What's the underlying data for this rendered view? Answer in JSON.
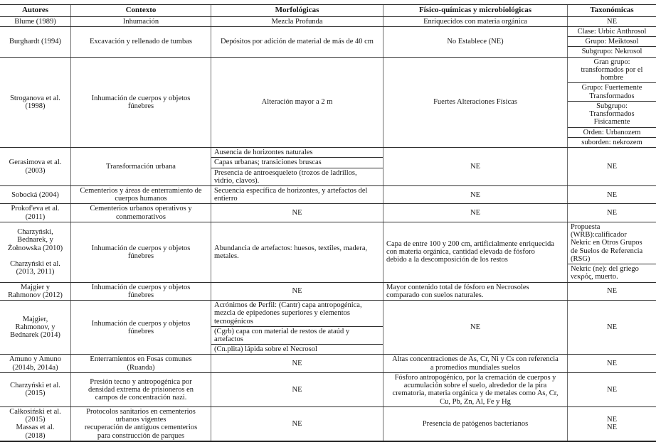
{
  "table": {
    "columns": [
      "Autores",
      "Contexto",
      "Morfológicas",
      "Físico-químicas y microbiológicas",
      "Taxonómicas"
    ],
    "rows": [
      {
        "autores": {
          "text": "Blume (1989)"
        },
        "contexto": {
          "text": "Inhumación"
        },
        "morfologicas": {
          "text": "Mezcla Profunda"
        },
        "fisicoquimicas": {
          "text": "Enriquecidos con materia orgánica"
        },
        "taxonomicas": {
          "text": "NE"
        }
      },
      {
        "autores": {
          "text": "Burghardt (1994)"
        },
        "contexto": {
          "text": "Excavación y rellenado de tumbas"
        },
        "morfologicas": {
          "text": "Depósitos por adición de material de más de 40 cm"
        },
        "fisicoquimicas": {
          "text": "No Establece (NE)"
        },
        "taxonomicas": {
          "subrows": [
            {
              "text": "Clase: Urbic Anthrosol"
            },
            {
              "text": "Grupo: Meiktosol"
            },
            {
              "text": "Subgrupo: Nekrosol"
            }
          ]
        }
      },
      {
        "autores": {
          "text": "Stroganova et al.\n(1998)"
        },
        "contexto": {
          "text": "Inhumación de cuerpos y objetos\nfúnebres"
        },
        "morfologicas": {
          "text": "Alteración mayor a 2 m"
        },
        "fisicoquimicas": {
          "text": "Fuertes Alteraciones Físicas"
        },
        "taxonomicas": {
          "subrows": [
            {
              "text": "Gran grupo:\ntransformados por el\nhombre"
            },
            {
              "text": "Grupo: Fuertemente\nTransformados"
            },
            {
              "text": "Subgrupo:\nTransformados\nFisicamente"
            },
            {
              "text": "Orden: Urbanozem"
            },
            {
              "text": "suborden: nekrozem"
            }
          ]
        }
      },
      {
        "autores": {
          "text": "Gerasimova et al.\n(2003)"
        },
        "contexto": {
          "text": "Transformación urbana"
        },
        "morfologicas": {
          "subrows": [
            {
              "text": "Ausencia de horizontes naturales",
              "align": "left"
            },
            {
              "text": "Capas urbanas; transiciones bruscas",
              "align": "left"
            },
            {
              "text": "Presencia de antroesqueleto (trozos de ladrillos,\nvidrio, clavos).",
              "align": "left"
            }
          ]
        },
        "fisicoquimicas": {
          "text": "NE"
        },
        "taxonomicas": {
          "text": "NE"
        }
      },
      {
        "autores": {
          "text": "Sobocká (2004)"
        },
        "contexto": {
          "text": "Cementerios y áreas de enterramiento de\ncuerpos humanos"
        },
        "morfologicas": {
          "text": "Secuencia específica de horizontes, y artefactos del\nentierro",
          "align": "left"
        },
        "fisicoquimicas": {
          "text": "NE"
        },
        "taxonomicas": {
          "text": "NE"
        }
      },
      {
        "autores": {
          "text": "Prokof'eva et al.\n(2011)"
        },
        "contexto": {
          "text": "Cementerios urbanos operativos y\nconmemorativos"
        },
        "morfologicas": {
          "text": "NE"
        },
        "fisicoquimicas": {
          "text": "NE"
        },
        "taxonomicas": {
          "text": "NE"
        }
      },
      {
        "autores": {
          "paragraphs": [
            "Charzyński,\nBednarek, y\nŻołnowska (2010)",
            "Charzyński et al.\n(2013, 2011)"
          ]
        },
        "contexto": {
          "text": "Inhumación de cuerpos y objetos\nfúnebres"
        },
        "morfologicas": {
          "text": "Abundancia de artefactos: huesos, textiles, madera,\nmetales.",
          "align": "left"
        },
        "fisicoquimicas": {
          "text": "Capa de entre 100 y 200 cm, artificialmente enriquecida\ncon materia orgánica, cantidad elevada de fósforo\ndebido a la descomposición de los restos",
          "align": "left"
        },
        "taxonomicas": {
          "subrows": [
            {
              "text": "Propuesta\n(WRB):calificador\nNekric en Otros Grupos\nde Suelos de Referencia\n(RSG)",
              "align": "left"
            },
            {
              "text": "Nekric (ne): del griego\nνεκρός, muerto.",
              "align": "left"
            }
          ]
        }
      },
      {
        "autores": {
          "text": "Majgier y\nRahmonov (2012)"
        },
        "contexto": {
          "text": "Inhumación de cuerpos y objetos\nfúnebres"
        },
        "morfologicas": {
          "text": "NE"
        },
        "fisicoquimicas": {
          "text": "Mayor contenido total de fósforo en Necrosoles\ncomparado con suelos naturales.",
          "align": "left"
        },
        "taxonomicas": {
          "text": "NE"
        }
      },
      {
        "autores": {
          "text": "Majgier,\nRahmonov, y\nBednarek (2014)"
        },
        "contexto": {
          "text": "Inhumación de cuerpos y objetos\nfúnebres"
        },
        "morfologicas": {
          "subrows": [
            {
              "text": "Acrónimos de Perfil: (Cantr) capa antropogénica,\nmezcla de epipedones superiores y elementos\ntecnogénicos",
              "align": "left"
            },
            {
              "text": "(Cgrb) capa con material de restos de ataúd y\nartefactos",
              "align": "left"
            },
            {
              "text": "(Cn.plita) lápida sobre el Necrosol",
              "align": "left"
            }
          ]
        },
        "fisicoquimicas": {
          "text": "NE"
        },
        "taxonomicas": {
          "text": "NE"
        }
      },
      {
        "autores": {
          "text": "Amuno y Amuno\n(2014b, 2014a)"
        },
        "contexto": {
          "text": "Enterramientos en Fosas comunes\n(Ruanda)"
        },
        "morfologicas": {
          "text": "NE"
        },
        "fisicoquimicas": {
          "text": "Altas concentraciones de As, Cr, Ni y Cs con referencia\na promedios mundiales suelos"
        },
        "taxonomicas": {
          "text": "NE"
        }
      },
      {
        "autores": {
          "text": "Charzyński et al.\n(2015)"
        },
        "contexto": {
          "text": "Presión tecno y antropogénica por\ndensidad extrema de prisioneros en\ncampos de concentración nazi."
        },
        "morfologicas": {
          "text": "NE"
        },
        "fisicoquimicas": {
          "text": "Fósforo antropogénico, por la cremación de cuerpos y\nacumulación sobre el suelo, alrededor de la pira\ncrematoria, materia orgánica y de metales como As, Cr,\nCu, Pb, Zn, Al, Fe y Hg"
        },
        "taxonomicas": {
          "text": "NE"
        }
      },
      {
        "autores": {
          "text": "Całkosiński et al.\n(2015)\nMassas et al.\n(2018)"
        },
        "contexto": {
          "text": "Protocolos sanitarios en cementerios\nurbanos vigentes\nrecuperación de antiguos cementerios\npara construcción de parques"
        },
        "morfologicas": {
          "text": "NE"
        },
        "fisicoquimicas": {
          "text": "Presencia de patógenos bacterianos"
        },
        "taxonomicas": {
          "text": "NE\nNE"
        }
      }
    ]
  }
}
